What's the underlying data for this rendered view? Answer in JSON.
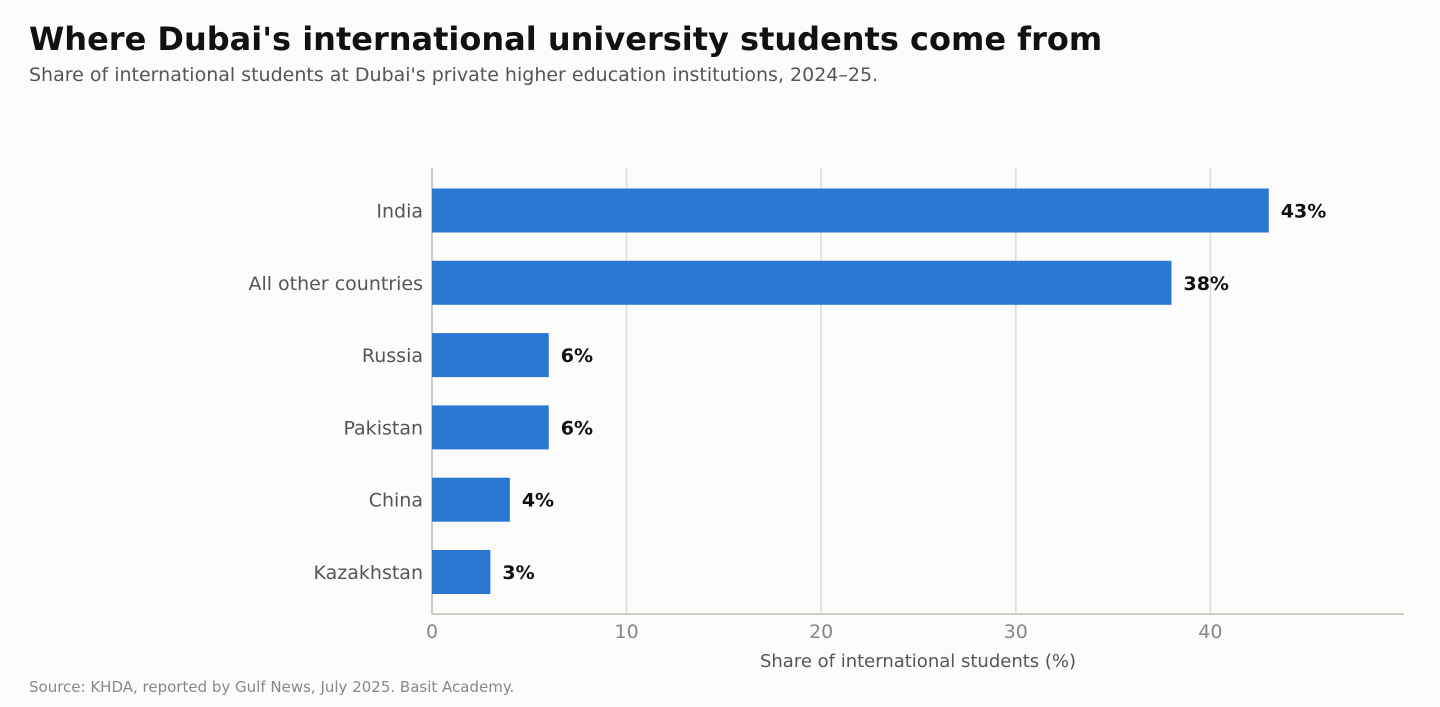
{
  "header": {
    "title": "Where Dubai's international university students come from",
    "subtitle": "Share of international students at Dubai's private higher education institutions, 2024–25."
  },
  "footer": {
    "source": "Source: KHDA, reported by Gulf News, July 2025. Basit Academy."
  },
  "colors": {
    "bar": "#2a78d4",
    "grid": "#dcdcd6",
    "axis": "#bdbdb6"
  },
  "chart_data": {
    "type": "bar",
    "orientation": "horizontal",
    "categories": [
      "India",
      "All other countries",
      "Russia",
      "Pakistan",
      "China",
      "Kazakhstan"
    ],
    "values": [
      43,
      38,
      6,
      6,
      4,
      3
    ],
    "value_labels": [
      "43%",
      "38%",
      "6%",
      "6%",
      "4%",
      "3%"
    ],
    "xlabel": "Share of international students (%)",
    "ylabel": "",
    "xlim": [
      0,
      50
    ],
    "xticks": [
      0,
      10,
      20,
      30,
      40
    ],
    "xtick_labels": [
      "0",
      "10",
      "20",
      "30",
      "40"
    ],
    "grid": "vertical",
    "legend": "none"
  }
}
